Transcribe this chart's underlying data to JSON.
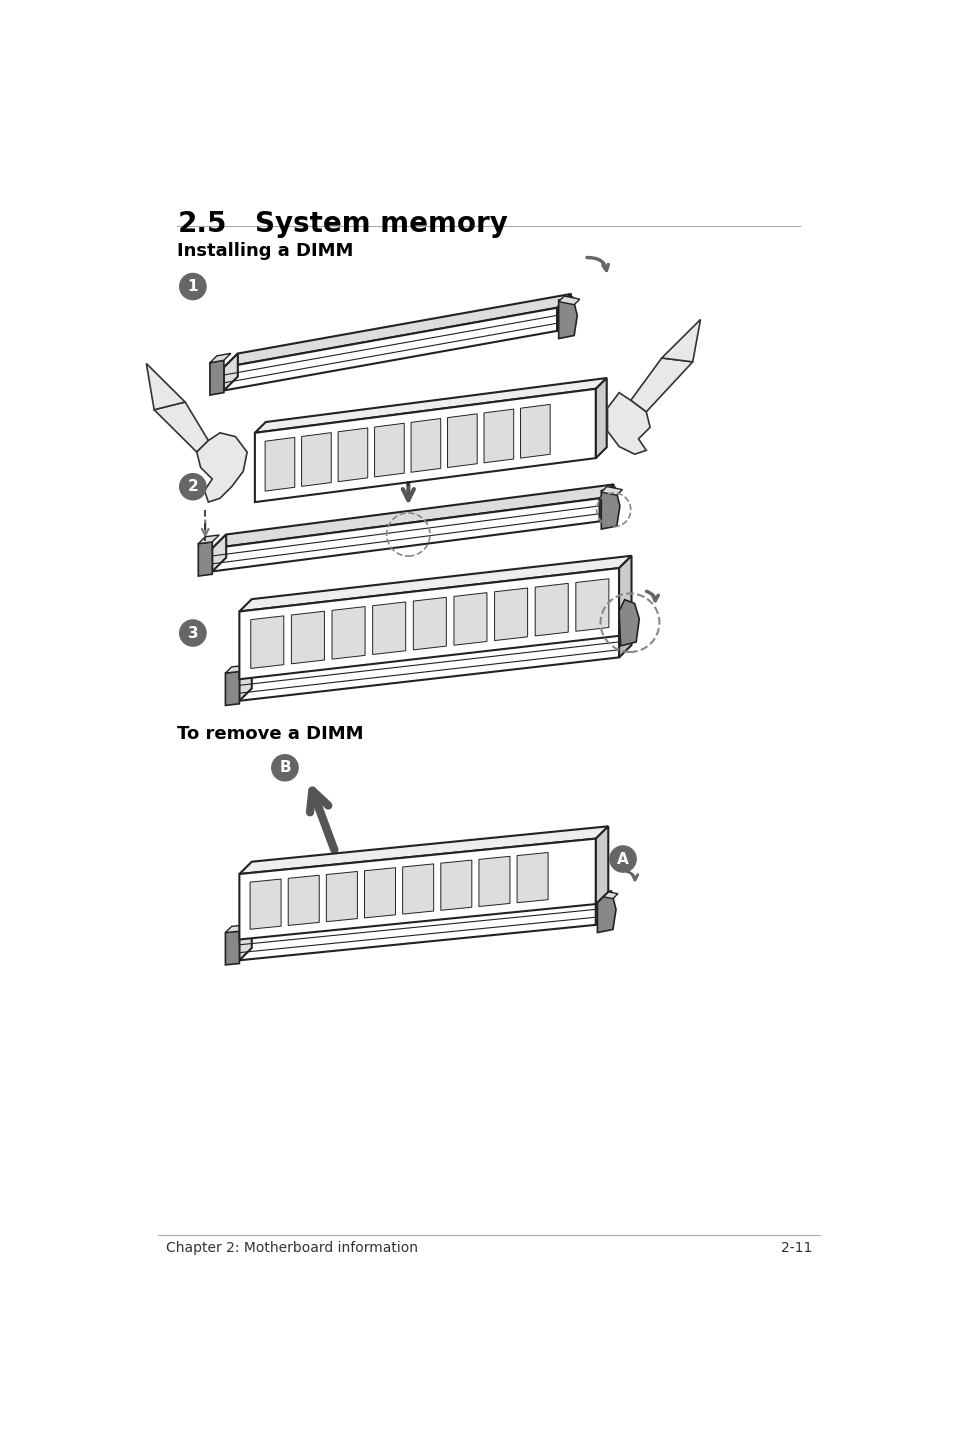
{
  "title_num": "2.5",
  "title_text": "System memory",
  "subtitle": "Installing a DIMM",
  "remove_title": "To remove a DIMM",
  "footer_left": "Chapter 2: Motherboard information",
  "footer_right": "2-11",
  "bg_color": "#ffffff",
  "text_color": "#000000",
  "step_circle_color": "#666666",
  "step_text_color": "#ffffff",
  "line_color": "#222222",
  "slot_color": "#ffffff",
  "slot_top_color": "#dddddd",
  "slot_side_color": "#bbbbbb",
  "chip_color": "#cccccc",
  "clip_color": "#888888",
  "hand_color": "#dddddd",
  "arrow_color": "#666666",
  "big_arrow_color": "#555555"
}
